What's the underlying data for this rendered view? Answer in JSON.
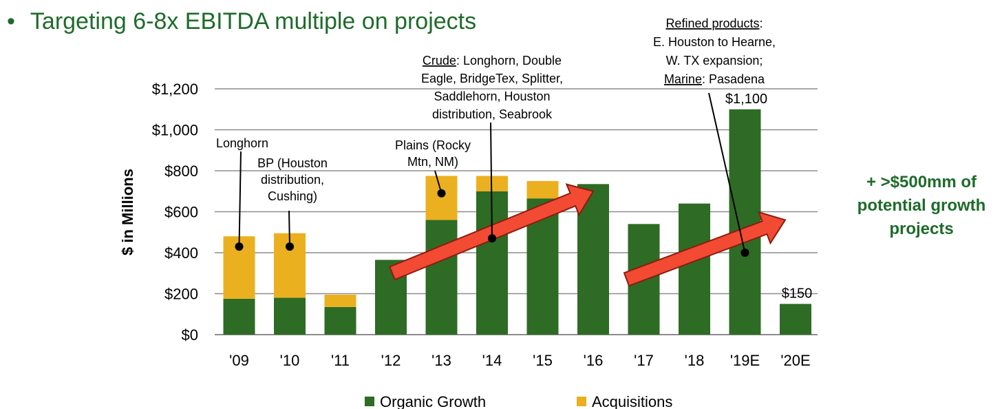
{
  "title": "Targeting 6-8x EBITDA multiple on projects",
  "title_bullet": "•",
  "side_note": {
    "line1": "+ >$500mm of",
    "line2": "potential growth",
    "line3": "projects"
  },
  "colors": {
    "organic": "#2e6b24",
    "acquisitions": "#ebb020",
    "title": "#1e6b2a",
    "arrow": "#f24a33",
    "grid": "#8c8c8c"
  },
  "annotations": [
    {
      "label": "longhorn",
      "category_index": 0,
      "point_y": 430,
      "lines": [
        "Longhorn"
      ]
    },
    {
      "label": "bp",
      "category_index": 1,
      "point_y": 430,
      "lines": [
        "BP (Houston",
        "distribution,",
        "Cushing)"
      ]
    },
    {
      "label": "plains",
      "category_index": 4,
      "point_y": 690,
      "lines": [
        "Plains (Rocky",
        "Mtn, NM)"
      ]
    },
    {
      "label": "crude",
      "category_index": 5,
      "point_y": 470,
      "underline": "Crude",
      "lines": [
        "Crude: Longhorn, Double",
        "Eagle, BridgeTex, Splitter,",
        "Saddlehorn, Houston",
        "distribution, Seabrook"
      ]
    },
    {
      "label": "refined",
      "category_index": 10,
      "point_y": 400,
      "underline_terms": [
        "Refined products",
        "Marine"
      ],
      "lines": [
        "Refined products:",
        "E. Houston to Hearne,",
        "W. TX expansion;",
        "Marine: Pasadena"
      ]
    }
  ],
  "chart_data": {
    "type": "bar",
    "stacked": true,
    "title": "",
    "xlabel": "",
    "ylabel": "$ in Millions",
    "ylim": [
      0,
      1200
    ],
    "y_ticks": [
      0,
      200,
      400,
      600,
      800,
      1000,
      1200
    ],
    "y_tick_labels": [
      "$0",
      "$200",
      "$400",
      "$600",
      "$800",
      "$1,000",
      "$1,200"
    ],
    "grid": true,
    "categories": [
      "'09",
      "'10",
      "'11",
      "'12",
      "'13",
      "'14",
      "'15",
      "'16",
      "'17",
      "'18",
      "'19E",
      "'20E"
    ],
    "series": [
      {
        "name": "Organic Growth",
        "values": [
          175,
          180,
          135,
          365,
          560,
          700,
          665,
          735,
          540,
          640,
          1100,
          150
        ]
      },
      {
        "name": "Acquisitions",
        "values": [
          305,
          315,
          60,
          0,
          215,
          75,
          85,
          0,
          0,
          0,
          0,
          0
        ]
      }
    ],
    "data_labels": [
      {
        "category_index": 10,
        "text": "$1,100"
      },
      {
        "category_index": 11,
        "text": "$150"
      }
    ],
    "legend_position": "bottom"
  }
}
